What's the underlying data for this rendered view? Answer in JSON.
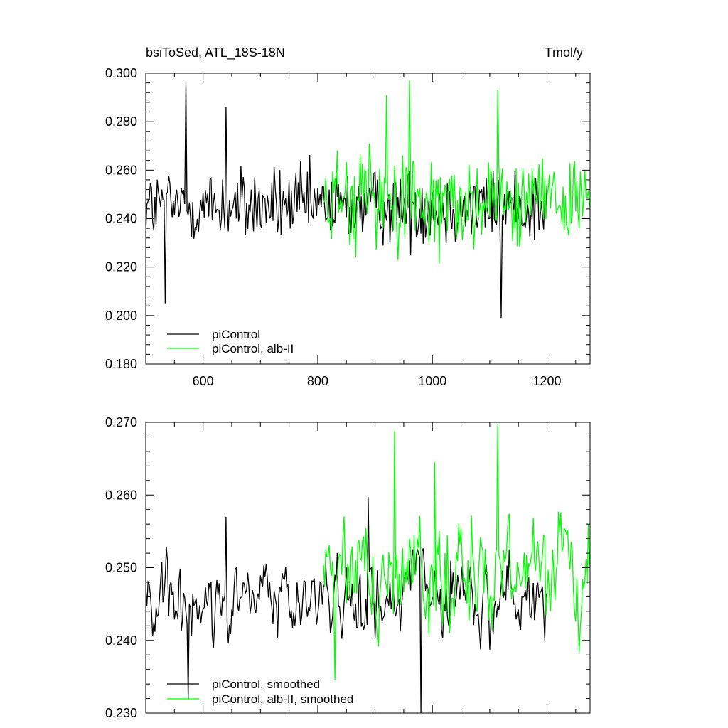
{
  "chart_data": [
    {
      "type": "line",
      "title": "bsiToSed, ATL_18S-18N",
      "units": "Tmol/y",
      "xlim": [
        500,
        1275
      ],
      "ylim": [
        0.18,
        0.3
      ],
      "x_ticks": [
        600,
        800,
        1000,
        1200
      ],
      "x_tick_labels": [
        "600",
        "800",
        "1000",
        "1200"
      ],
      "y_ticks": [
        0.18,
        0.2,
        0.22,
        0.24,
        0.26,
        0.28,
        0.3
      ],
      "y_tick_labels": [
        "0.180",
        "0.200",
        "0.220",
        "0.240",
        "0.260",
        "0.280",
        "0.300"
      ],
      "grid": false,
      "legend_position": "bottom-left",
      "series": [
        {
          "name": "piControl",
          "color": "#000000",
          "x_range": [
            500,
            1200
          ],
          "x_step": 2,
          "y_mean": 0.245,
          "y_spread": 0.011,
          "extremes": [
            [
              535,
              0.205
            ],
            [
              570,
              0.296
            ],
            [
              1120,
              0.199
            ],
            [
              640,
              0.286
            ]
          ]
        },
        {
          "name": "piControl, alb-II",
          "color": "#00ff00",
          "x_range": [
            810,
            1275
          ],
          "x_step": 2,
          "y_mean": 0.248,
          "y_spread": 0.014,
          "extremes": [
            [
              960,
              0.297
            ],
            [
              1115,
              0.293
            ],
            [
              920,
              0.291
            ]
          ]
        }
      ]
    },
    {
      "type": "line",
      "xlim": [
        500,
        1275
      ],
      "ylim": [
        0.23,
        0.27
      ],
      "x_ticks": [
        600,
        800,
        1000,
        1200
      ],
      "y_ticks": [
        0.23,
        0.24,
        0.25,
        0.26,
        0.27
      ],
      "y_tick_labels": [
        "0.230",
        "0.240",
        "0.250",
        "0.260",
        "0.270"
      ],
      "grid": false,
      "legend_position": "bottom-left",
      "series": [
        {
          "name": "piControl, smoothed",
          "color": "#000000",
          "x_range": [
            500,
            1200
          ],
          "x_step": 2,
          "y_mean": 0.246,
          "y_spread": 0.004,
          "extremes": [
            [
              575,
              0.232
            ],
            [
              980,
              0.23
            ],
            [
              888,
              0.2597
            ],
            [
              640,
              0.257
            ]
          ]
        },
        {
          "name": "piControl, alb-II, smoothed",
          "color": "#00ff00",
          "x_range": [
            810,
            1275
          ],
          "x_step": 2,
          "y_mean": 0.249,
          "y_spread": 0.0055,
          "extremes": [
            [
              1115,
              0.2698
            ],
            [
              935,
              0.2688
            ],
            [
              830,
              0.2345
            ],
            [
              1005,
              0.2645
            ]
          ]
        }
      ]
    }
  ]
}
